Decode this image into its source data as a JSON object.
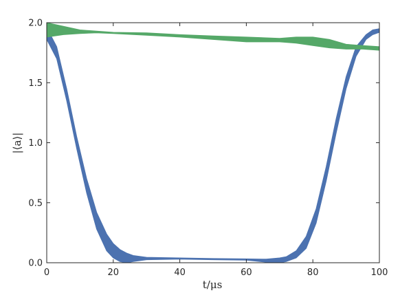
{
  "chart_data": {
    "type": "line",
    "title": "",
    "xlabel": "t/μs",
    "ylabel": "|⟨a⟩|",
    "xlim": [
      0,
      100
    ],
    "ylim": [
      0,
      2.0
    ],
    "xticks": [
      0,
      20,
      40,
      60,
      80,
      100
    ],
    "xtick_labels": [
      "0",
      "20",
      "40",
      "60",
      "80",
      "100"
    ],
    "yticks": [
      0,
      0.5,
      1.0,
      1.5,
      2.0
    ],
    "ytick_labels": [
      "0.0",
      "0.5",
      "1.0",
      "1.5",
      "2.0"
    ],
    "grid": false,
    "series": [
      {
        "color": "#4c72b0",
        "style": "band",
        "x": [
          0,
          3,
          6,
          9,
          12,
          15,
          18,
          20,
          22,
          24,
          26,
          30,
          40,
          50,
          60,
          66,
          70,
          72,
          75,
          78,
          81,
          84,
          87,
          90,
          93,
          96,
          98,
          100
        ],
        "upper": [
          1.96,
          1.8,
          1.45,
          1.05,
          0.7,
          0.42,
          0.24,
          0.16,
          0.11,
          0.08,
          0.06,
          0.045,
          0.04,
          0.035,
          0.032,
          0.03,
          0.04,
          0.05,
          0.1,
          0.22,
          0.45,
          0.8,
          1.2,
          1.55,
          1.8,
          1.9,
          1.94,
          1.95
        ],
        "lower": [
          1.86,
          1.7,
          1.35,
          0.95,
          0.58,
          0.28,
          0.1,
          0.04,
          0.01,
          0.0,
          0.01,
          0.025,
          0.03,
          0.025,
          0.022,
          0.005,
          0.0,
          0.01,
          0.04,
          0.12,
          0.33,
          0.68,
          1.08,
          1.45,
          1.72,
          1.86,
          1.9,
          1.92
        ]
      },
      {
        "color": "#55a868",
        "style": "band",
        "x": [
          0,
          5,
          10,
          15,
          20,
          30,
          40,
          50,
          60,
          70,
          75,
          80,
          85,
          90,
          95,
          100
        ],
        "upper": [
          2.0,
          1.97,
          1.94,
          1.93,
          1.92,
          1.915,
          1.9,
          1.89,
          1.88,
          1.87,
          1.88,
          1.88,
          1.86,
          1.82,
          1.81,
          1.8
        ],
        "lower": [
          1.88,
          1.9,
          1.91,
          1.915,
          1.91,
          1.895,
          1.88,
          1.86,
          1.84,
          1.84,
          1.83,
          1.81,
          1.79,
          1.78,
          1.78,
          1.77
        ]
      }
    ]
  }
}
